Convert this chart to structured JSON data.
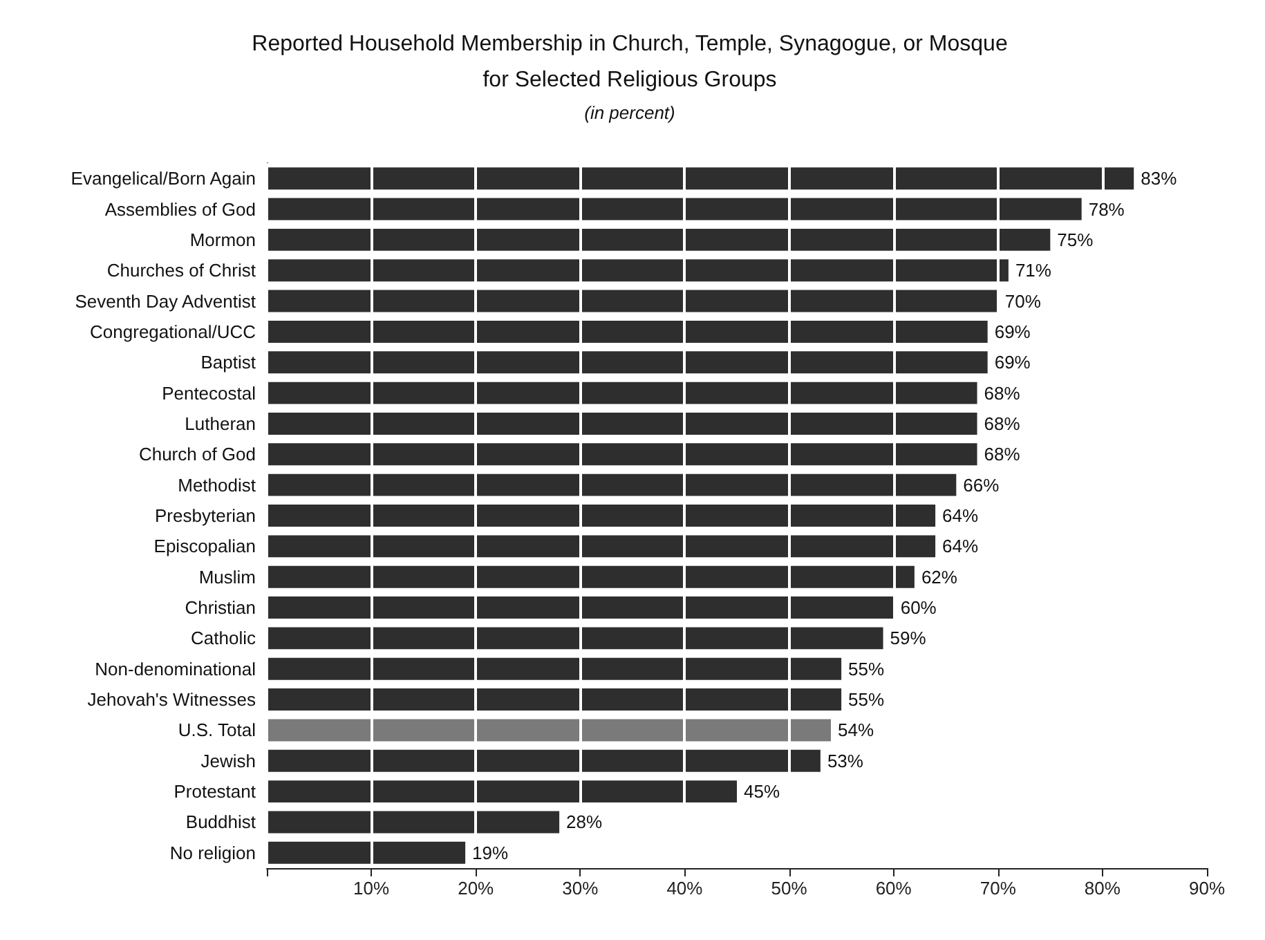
{
  "chart_data": {
    "type": "bar",
    "orientation": "horizontal",
    "title": "Reported Household Membership in Church, Temple, Synagogue, or Mosque\nfor Selected Religious Groups",
    "subtitle": "(in percent)",
    "categories": [
      "Evangelical/Born Again",
      "Assemblies of God",
      "Mormon",
      "Churches of Christ",
      "Seventh Day Adventist",
      "Congregational/UCC",
      "Baptist",
      "Pentecostal",
      "Lutheran",
      "Church of God",
      "Methodist",
      "Presbyterian",
      "Episcopalian",
      "Muslim",
      "Christian",
      "Catholic",
      "Non-denominational",
      "Jehovah's Witnesses",
      "U.S. Total",
      "Jewish",
      "Protestant",
      "Buddhist",
      "No religion"
    ],
    "values": [
      83,
      78,
      75,
      71,
      70,
      69,
      69,
      68,
      68,
      68,
      66,
      64,
      64,
      62,
      60,
      59,
      55,
      55,
      54,
      53,
      45,
      28,
      19
    ],
    "value_labels": [
      "83%",
      "78%",
      "75%",
      "71%",
      "70%",
      "69%",
      "69%",
      "68%",
      "68%",
      "68%",
      "66%",
      "64%",
      "64%",
      "62%",
      "60%",
      "59%",
      "55%",
      "55%",
      "54%",
      "53%",
      "45%",
      "28%",
      "19%"
    ],
    "colors": [
      "#2e2e2e",
      "#2e2e2e",
      "#2e2e2e",
      "#2e2e2e",
      "#2e2e2e",
      "#2e2e2e",
      "#2e2e2e",
      "#2e2e2e",
      "#2e2e2e",
      "#2e2e2e",
      "#2e2e2e",
      "#2e2e2e",
      "#2e2e2e",
      "#2e2e2e",
      "#2e2e2e",
      "#2e2e2e",
      "#2e2e2e",
      "#2e2e2e",
      "#7a7a7a",
      "#2e2e2e",
      "#2e2e2e",
      "#2e2e2e",
      "#2e2e2e"
    ],
    "xlim": [
      0,
      90
    ],
    "xticks": [
      {
        "value": 0,
        "label": null
      },
      {
        "value": 10,
        "label": "10%"
      },
      {
        "value": 20,
        "label": "20%"
      },
      {
        "value": 30,
        "label": "30%"
      },
      {
        "value": 40,
        "label": "40%"
      },
      {
        "value": 50,
        "label": "50%"
      },
      {
        "value": 60,
        "label": "60%"
      },
      {
        "value": 70,
        "label": "70%"
      },
      {
        "value": 80,
        "label": "80%"
      },
      {
        "value": 90,
        "label": "90%"
      }
    ],
    "grid": "x"
  }
}
